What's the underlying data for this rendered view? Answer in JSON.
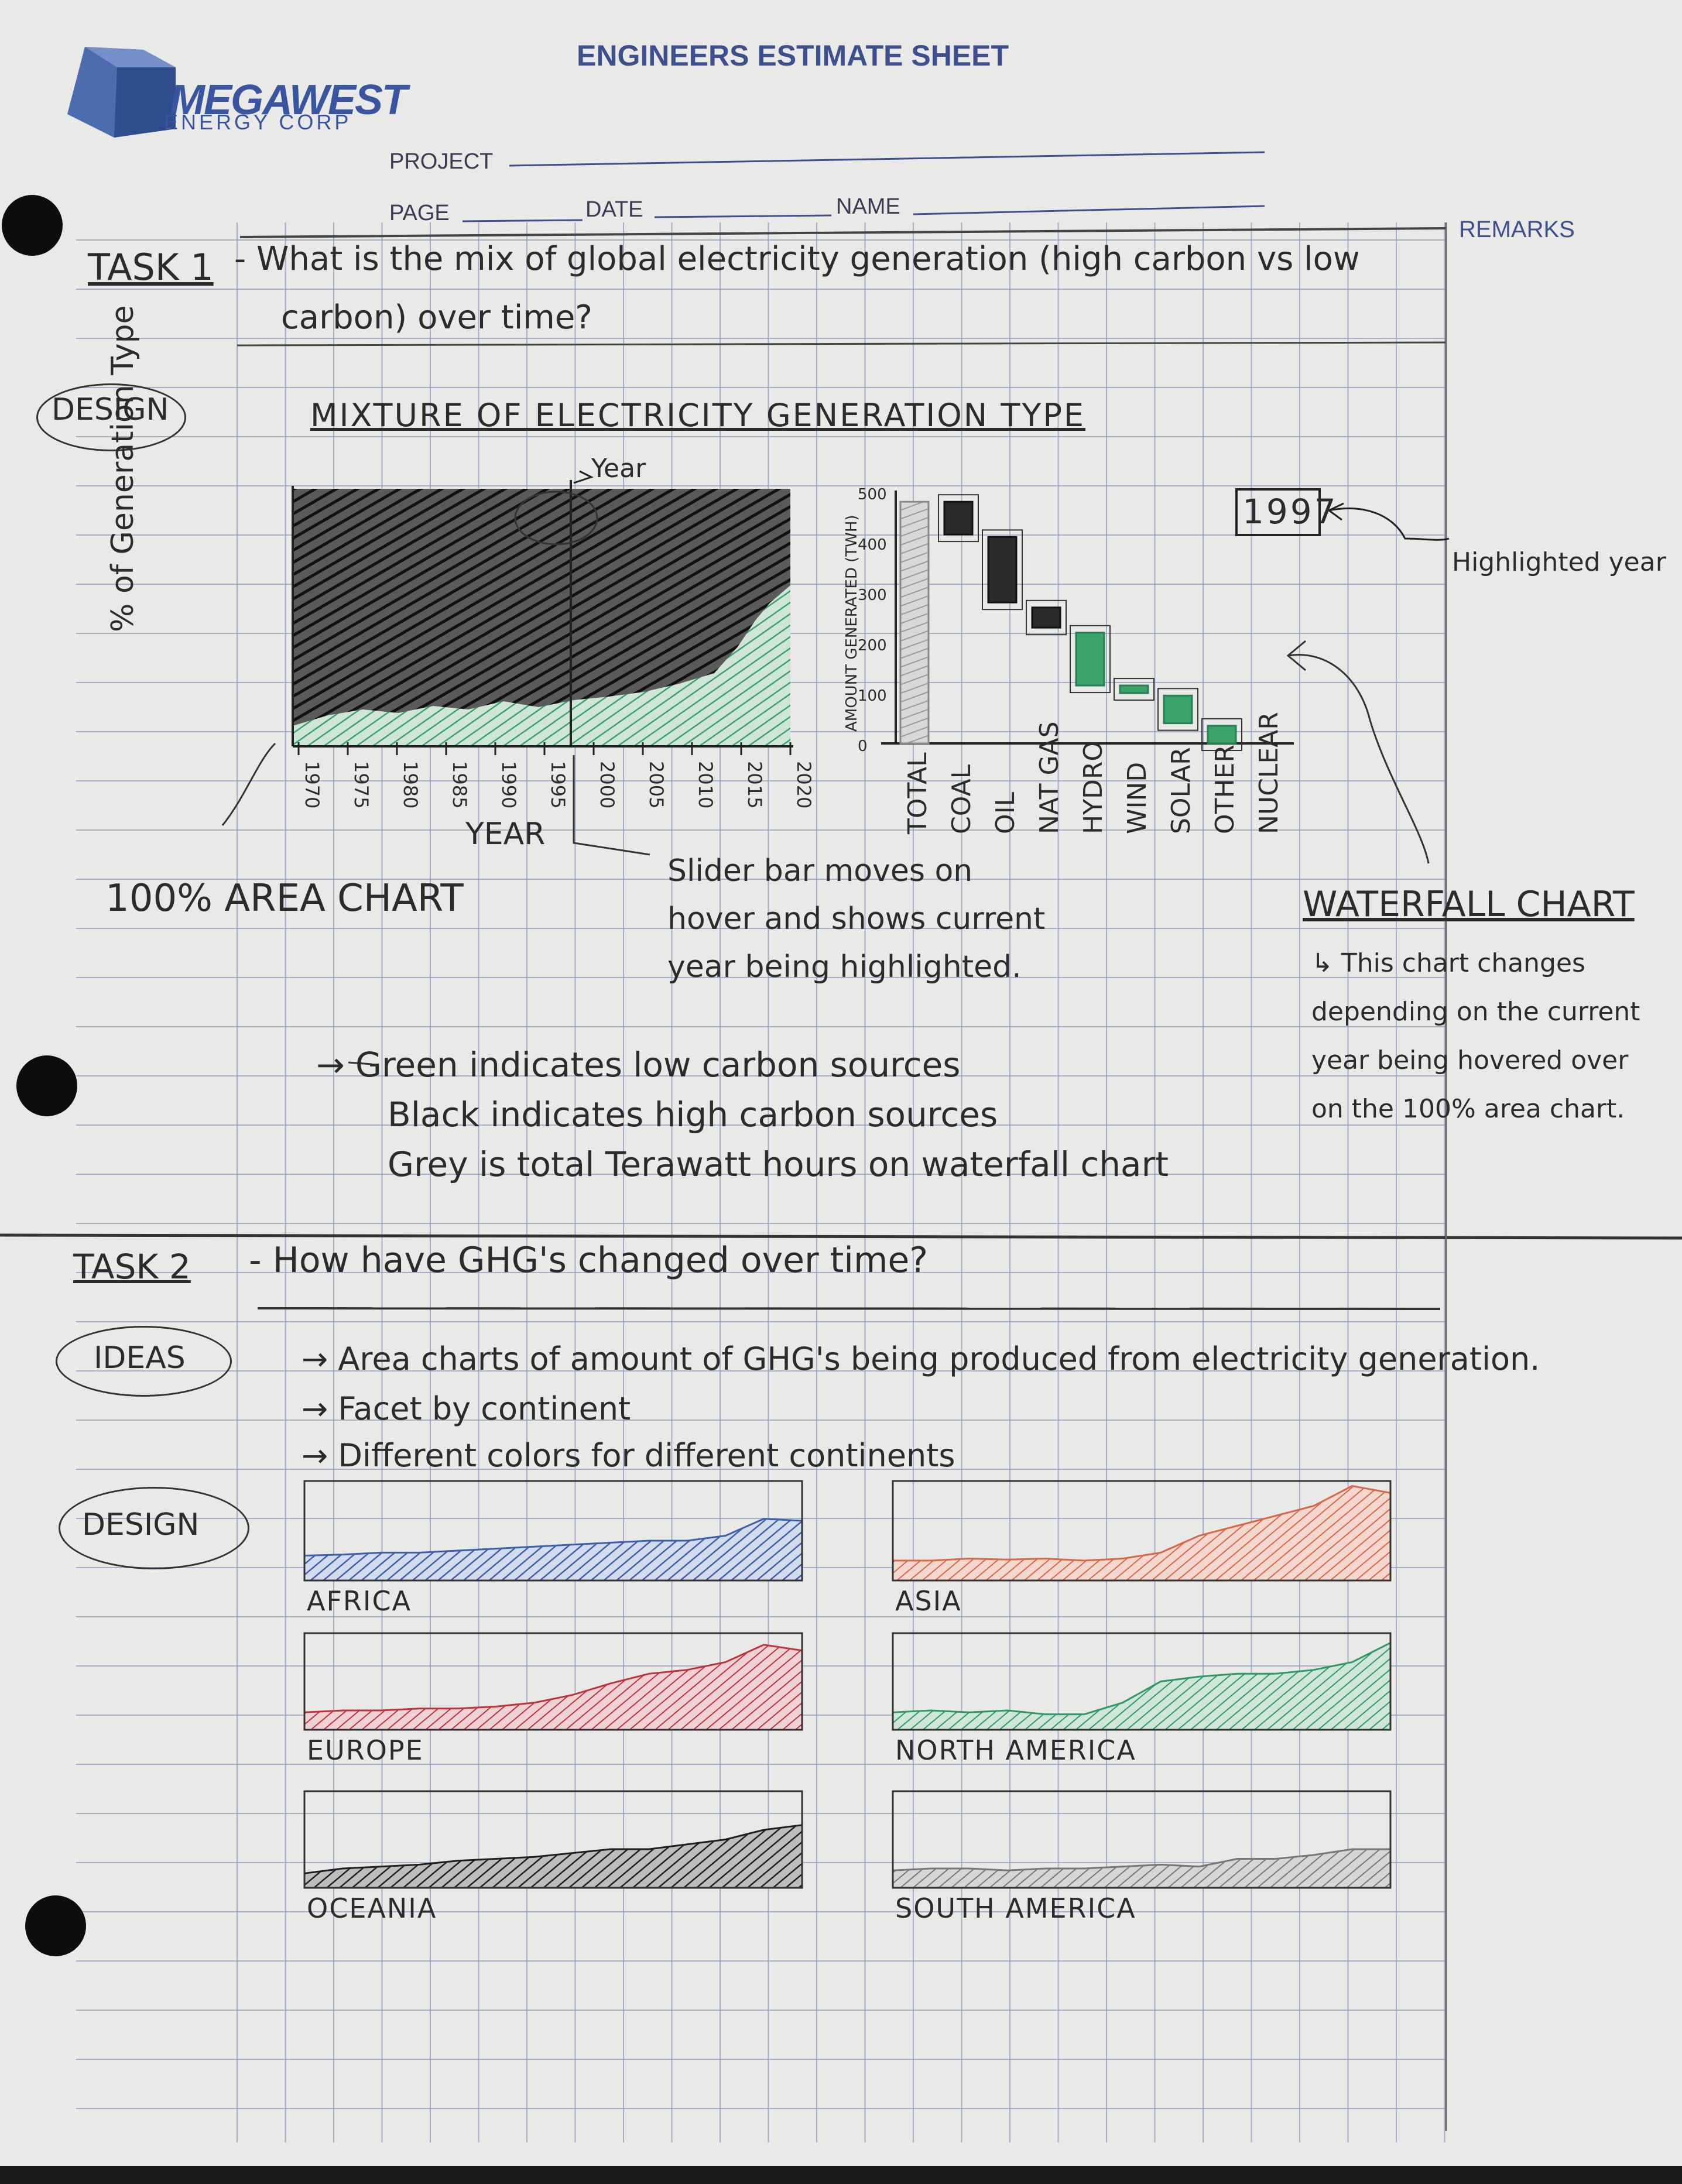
{
  "header": {
    "logo_text": "MEGAWEST",
    "logo_sub": "ENERGY CORP",
    "title": "ENGINEERS ESTIMATE SHEET",
    "project_label": "PROJECT",
    "page_label": "PAGE",
    "date_label": "DATE",
    "name_label": "NAME",
    "remarks_label": "REMARKS"
  },
  "task1": {
    "label": "TASK 1",
    "question_line1": "- What is the mix of global electricity generation (high carbon vs low",
    "question_line2": "carbon) over time?",
    "design_label": "DESIGN",
    "chart_title": "MIXTURE OF ELECTRICITY GENERATION TYPE",
    "area_chart": {
      "ylabel": "% of Generation Type",
      "xlabel": "YEAR",
      "slider_label": "Year",
      "x_ticks": [
        "1970",
        "1975",
        "1980",
        "1985",
        "1990",
        "1995",
        "2000",
        "2005",
        "2010",
        "2015",
        "2020"
      ]
    },
    "waterfall": {
      "ylabel": "AMOUNT GENERATED (TWH)",
      "y_ticks": [
        "500",
        "400",
        "300",
        "200",
        "100",
        "0"
      ],
      "categories": [
        "TOTAL",
        "COAL",
        "OIL",
        "NAT GAS",
        "HYDRO",
        "WIND",
        "SOLAR",
        "OTHER",
        "NUCLEAR"
      ],
      "highlight_year": "1997",
      "highlight_note": "Highlighted year"
    },
    "area_chart_label": "100% AREA CHART",
    "slider_note": [
      "Slider bar moves on",
      "hover and shows current",
      "year being highlighted."
    ],
    "waterfall_label": "WATERFALL CHART",
    "waterfall_note": [
      "↳ This chart changes",
      "depending on the current",
      "year being hovered over",
      "on the 100% area chart."
    ],
    "legend_notes": [
      "→ Green indicates low carbon sources",
      "Black indicates high carbon sources",
      "Grey is total Terawatt hours on waterfall chart"
    ]
  },
  "task2": {
    "label": "TASK 2",
    "question": "- How have GHG's changed over time?",
    "ideas_label": "IDEAS",
    "ideas": [
      "→ Area charts of amount of GHG's being produced from electricity generation.",
      "→ Facet by continent",
      "→ Different colors for different continents"
    ],
    "design_label": "DESIGN",
    "panels": [
      {
        "name": "AFRICA",
        "color": "#3f5fa8"
      },
      {
        "name": "ASIA",
        "color": "#d9674a"
      },
      {
        "name": "EUROPE",
        "color": "#c0333b"
      },
      {
        "name": "NORTH AMERICA",
        "color": "#2f9a63"
      },
      {
        "name": "OCEANIA",
        "color": "#1f1f1f"
      },
      {
        "name": "SOUTH AMERICA",
        "color": "#777777"
      }
    ]
  },
  "colors": {
    "grid": "#8e9ec4",
    "low_carbon": "#3aa36a",
    "high_carbon": "#1e1e1e",
    "total": "#a8a8a8",
    "ink": "#2b2b2b",
    "print_blue": "#3d4f8c"
  }
}
